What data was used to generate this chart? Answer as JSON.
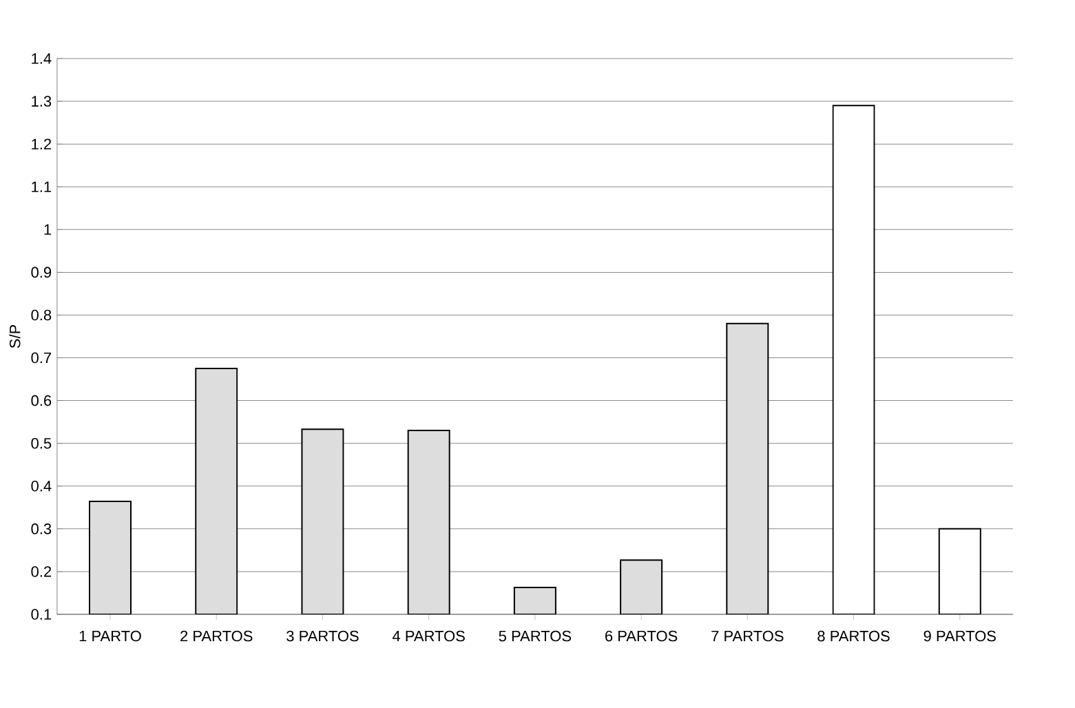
{
  "chart_data": {
    "type": "bar",
    "ylabel": "S/P",
    "categories": [
      "1 PARTO",
      "2 PARTOS",
      "3 PARTOS",
      "4 PARTOS",
      "5 PARTOS",
      "6 PARTOS",
      "7 PARTOS",
      "8 PARTOS",
      "9 PARTOS"
    ],
    "values": [
      0.364,
      0.675,
      0.533,
      0.53,
      0.163,
      0.227,
      0.78,
      1.29,
      0.3
    ],
    "colors": [
      "#dddddd",
      "#dddddd",
      "#dddddd",
      "#dddddd",
      "#dddddd",
      "#dddddd",
      "#dddddd",
      "#ffffff",
      "#ffffff"
    ],
    "ylim": [
      0.1,
      1.4
    ],
    "yticks": [
      0.1,
      0.2,
      0.3,
      0.4,
      0.5,
      0.6,
      0.7,
      0.8,
      0.9,
      1,
      1.1,
      1.2,
      1.3,
      1.4
    ],
    "grid": "y"
  }
}
